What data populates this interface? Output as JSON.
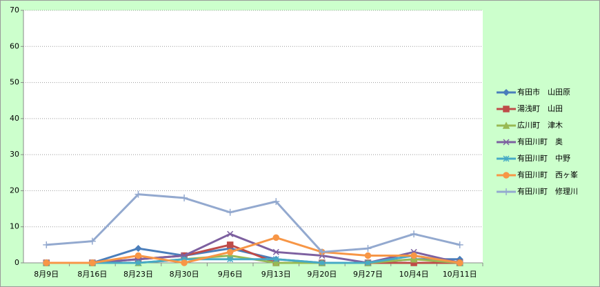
{
  "chart_data": {
    "type": "line",
    "categories": [
      "8月9日",
      "8月16日",
      "8月23日",
      "8月30日",
      "9月6日",
      "9月13日",
      "9月20日",
      "9月27日",
      "10月4日",
      "10月11日"
    ],
    "series": [
      {
        "name": "有田市　山田原",
        "color": "#4a7ebb",
        "marker": "diamond",
        "values": [
          0,
          0,
          4,
          2,
          4,
          1,
          0,
          0,
          1,
          1
        ]
      },
      {
        "name": "湯浅町　山田",
        "color": "#be4b48",
        "marker": "square",
        "values": [
          0,
          0,
          1,
          2,
          5,
          0,
          0,
          0,
          0,
          0
        ]
      },
      {
        "name": "広川町　津木",
        "color": "#98b954",
        "marker": "triangle",
        "values": [
          0,
          0,
          0,
          1,
          2,
          0,
          0,
          0,
          1,
          0
        ]
      },
      {
        "name": "有田川町　奥",
        "color": "#7d60a0",
        "marker": "x",
        "values": [
          0,
          0,
          1,
          2,
          8,
          3,
          2,
          0,
          3,
          0
        ]
      },
      {
        "name": "有田川町　中野",
        "color": "#46aac5",
        "marker": "star",
        "values": [
          0,
          0,
          0,
          1,
          1,
          1,
          0,
          0,
          2,
          0
        ]
      },
      {
        "name": "有田川町　西ヶ峯",
        "color": "#f79646",
        "marker": "circle",
        "values": [
          0,
          0,
          2,
          0,
          3,
          7,
          3,
          2,
          2,
          0
        ]
      },
      {
        "name": "有田川町　修理川",
        "color": "#93a9cf",
        "marker": "plus",
        "values": [
          5,
          6,
          19,
          18,
          14,
          17,
          3,
          4,
          8,
          5
        ]
      }
    ],
    "ylim": [
      0,
      70
    ],
    "yticks": [
      0,
      10,
      20,
      30,
      40,
      50,
      60,
      70
    ],
    "grid": true,
    "legend": "right"
  }
}
